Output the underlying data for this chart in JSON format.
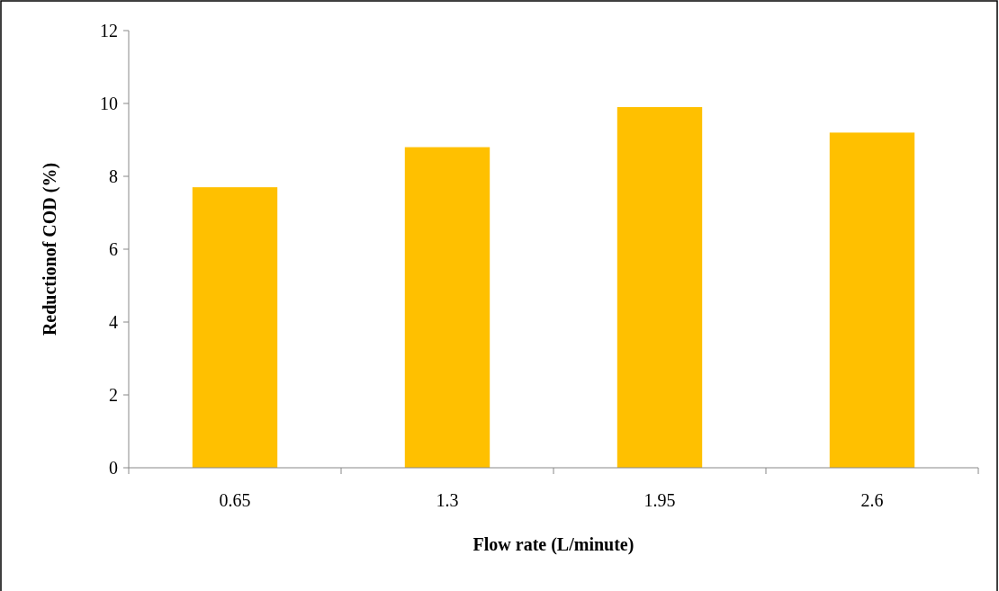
{
  "chart_data": {
    "type": "bar",
    "xlabel": "Flow rate  (L/minute)",
    "ylabel": "Reductionof COD (%)",
    "categories": [
      "0.65",
      "1.3",
      "1.95",
      "2.6"
    ],
    "values": [
      7.7,
      8.8,
      9.9,
      9.2
    ],
    "color": "#ffc000",
    "ylim": [
      0,
      12
    ],
    "yticks": [
      0,
      2,
      4,
      6,
      8,
      10,
      12
    ],
    "grid": false
  }
}
